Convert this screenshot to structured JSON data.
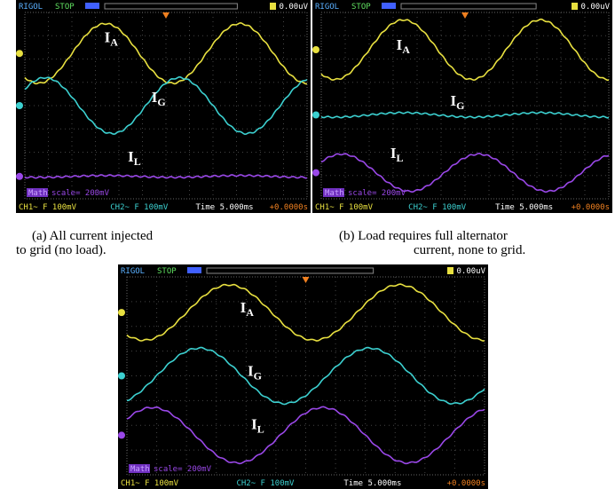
{
  "panels": [
    {
      "status": {
        "brand": "RIGOL",
        "state": "STOP",
        "trigger": "0.00uV"
      },
      "math": {
        "label": "Math",
        "scale": "scale= 200mV"
      },
      "footer": {
        "ch1": "CH1~ F 100mV",
        "ch2": "CH2~ F 100mV",
        "time": "Time 5.000ms",
        "offset": "+0.0000s"
      },
      "traces": [
        {
          "name": "I",
          "sub": "A"
        },
        {
          "name": "I",
          "sub": "G"
        },
        {
          "name": "I",
          "sub": "L"
        }
      ],
      "caption": [
        "(a) All current injected",
        "to grid (no load)."
      ]
    },
    {
      "status": {
        "brand": "RIGOL",
        "state": "STOP",
        "trigger": "0.00uV"
      },
      "math": {
        "label": "Math",
        "scale": "scale= 200mV"
      },
      "footer": {
        "ch1": "CH1~ F 100mV",
        "ch2": "CH2~ F 100mV",
        "time": "Time 5.000ms",
        "offset": "+0.0000s"
      },
      "traces": [
        {
          "name": "I",
          "sub": "A"
        },
        {
          "name": "I",
          "sub": "G"
        },
        {
          "name": "I",
          "sub": "L"
        }
      ],
      "caption": [
        "(b) Load requires full alternator",
        "current, none to grid."
      ]
    },
    {
      "status": {
        "brand": "RIGOL",
        "state": "STOP",
        "trigger": "0.00uV"
      },
      "math": {
        "label": "Math",
        "scale": "scale= 200mV"
      },
      "footer": {
        "ch1": "CH1~ F 100mV",
        "ch2": "CH2~ F 100mV",
        "time": "Time 5.000ms",
        "offset": "+0.0000s"
      },
      "traces": [
        {
          "name": "I",
          "sub": "A"
        },
        {
          "name": "I",
          "sub": "G"
        },
        {
          "name": "I",
          "sub": "L"
        }
      ]
    }
  ]
}
